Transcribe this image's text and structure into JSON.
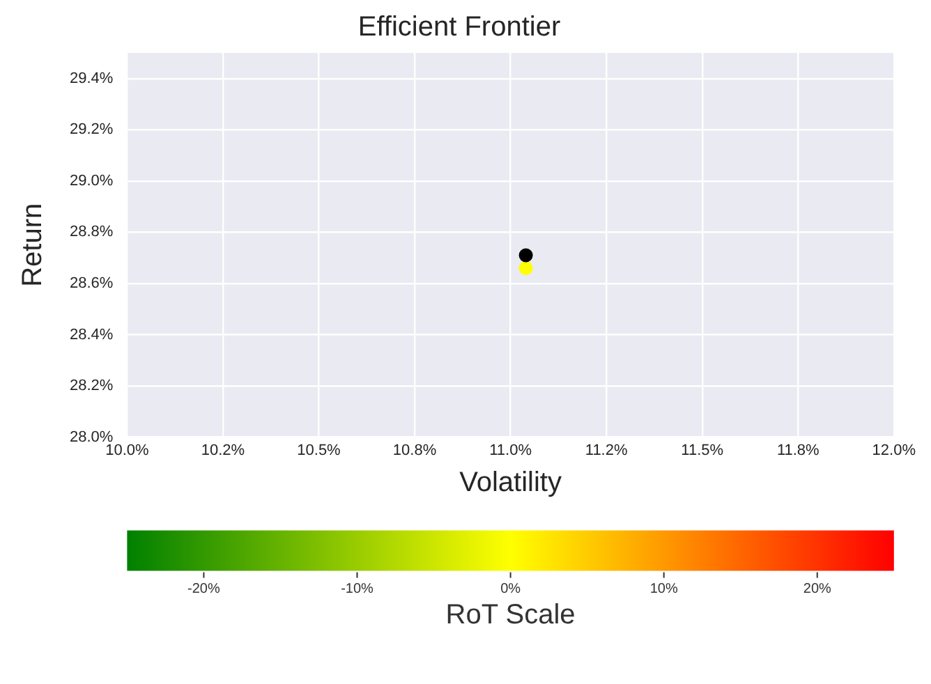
{
  "chart_data": {
    "type": "scatter",
    "title": "Efficient Frontier",
    "xlabel": "Volatility",
    "ylabel": "Return",
    "clabel": "RoT Scale",
    "series": [
      {
        "color": "#000000",
        "x": [
          11.04
        ],
        "values": [
          28.71
        ]
      },
      {
        "color": "#ffff00",
        "x": [
          11.04
        ],
        "values": [
          28.66
        ]
      }
    ],
    "xlim": [
      10,
      12
    ],
    "xticks": [
      {
        "value": 10,
        "label": "10.0%"
      },
      {
        "value": 10.25,
        "label": "10.2%"
      },
      {
        "value": 10.5,
        "label": "10.5%"
      },
      {
        "value": 10.75,
        "label": "10.8%"
      },
      {
        "value": 11,
        "label": "11.0%"
      },
      {
        "value": 11.25,
        "label": "11.2%"
      },
      {
        "value": 11.5,
        "label": "11.5%"
      },
      {
        "value": 11.75,
        "label": "11.8%"
      },
      {
        "value": 12,
        "label": "12.0%"
      }
    ],
    "ylim": [
      28.0,
      29.5
    ],
    "yticks": [
      {
        "value": 28.0,
        "label": "28.0%"
      },
      {
        "value": 28.2,
        "label": "28.2%"
      },
      {
        "value": 28.4,
        "label": "28.4%"
      },
      {
        "value": 28.6,
        "label": "28.6%"
      },
      {
        "value": 28.8,
        "label": "28.8%"
      },
      {
        "value": 29.0,
        "label": "29.0%"
      },
      {
        "value": 29.2,
        "label": "29.2%"
      },
      {
        "value": 29.4,
        "label": "29.4%"
      }
    ],
    "clim": [
      -25,
      25
    ],
    "cticks": [
      {
        "value": -20,
        "label": "-20%"
      },
      {
        "value": -10,
        "label": "-10%"
      },
      {
        "value": 0,
        "label": "0%"
      },
      {
        "value": 10,
        "label": "10%"
      },
      {
        "value": 20,
        "label": "20%"
      }
    ],
    "grid": true,
    "marker": "circle",
    "legend": false
  }
}
